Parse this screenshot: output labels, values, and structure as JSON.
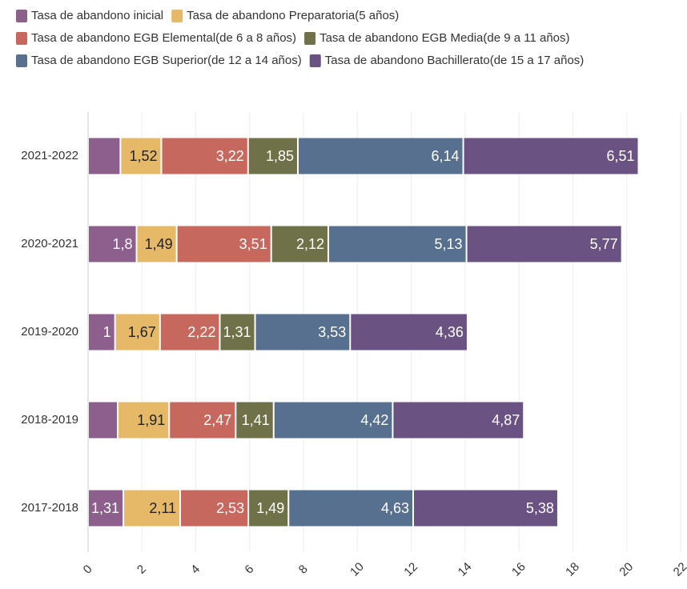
{
  "chart_data": {
    "type": "stacked_bar_horizontal",
    "categories": [
      "2021-2022",
      "2020-2021",
      "2019-2020",
      "2018-2019",
      "2017-2018"
    ],
    "series": [
      {
        "name": "Tasa de abandono inicial",
        "color": "#8c5f8c",
        "values": [
          1.2,
          1.8,
          1,
          1.1,
          1.31
        ],
        "value_labels": [
          null,
          "1,8",
          "1",
          null,
          "1,31"
        ]
      },
      {
        "name": "Tasa de abandono Preparatoria(5 años)",
        "color": "#e6b968",
        "values": [
          1.52,
          1.49,
          1.67,
          1.91,
          2.11
        ],
        "value_labels": [
          "1,52",
          "1,49",
          "1,67",
          "1,91",
          "2,11"
        ]
      },
      {
        "name": "Tasa de abandono EGB Elemental(de 6 a 8 años)",
        "color": "#c7685f",
        "values": [
          3.22,
          3.51,
          2.22,
          2.47,
          2.53
        ],
        "value_labels": [
          "3,22",
          "3,51",
          "2,22",
          "2,47",
          "2,53"
        ]
      },
      {
        "name": "Tasa de abandono EGB Media(de 9 a 11 años)",
        "color": "#6f7248",
        "values": [
          1.85,
          2.12,
          1.31,
          1.41,
          1.49
        ],
        "value_labels": [
          "1,85",
          "2,12",
          "1,31",
          "1,41",
          "1,49"
        ]
      },
      {
        "name": "Tasa de abandono EGB Superior(de 12 a 14 años)",
        "color": "#57708f",
        "values": [
          6.14,
          5.13,
          3.53,
          4.42,
          4.63
        ],
        "value_labels": [
          "6,14",
          "5,13",
          "3,53",
          "4,42",
          "4,63"
        ]
      },
      {
        "name": "Tasa de abandono Bachillerato(de 15 a 17 años)",
        "color": "#6a5383",
        "values": [
          6.51,
          5.77,
          4.36,
          4.87,
          5.38
        ],
        "value_labels": [
          "6,51",
          "5,77",
          "4,36",
          "4,87",
          "5,38"
        ]
      }
    ],
    "xlim": [
      0,
      22
    ],
    "xticks": [
      0,
      2,
      4,
      6,
      8,
      10,
      12,
      14,
      16,
      18,
      20,
      22
    ],
    "grid": true
  }
}
